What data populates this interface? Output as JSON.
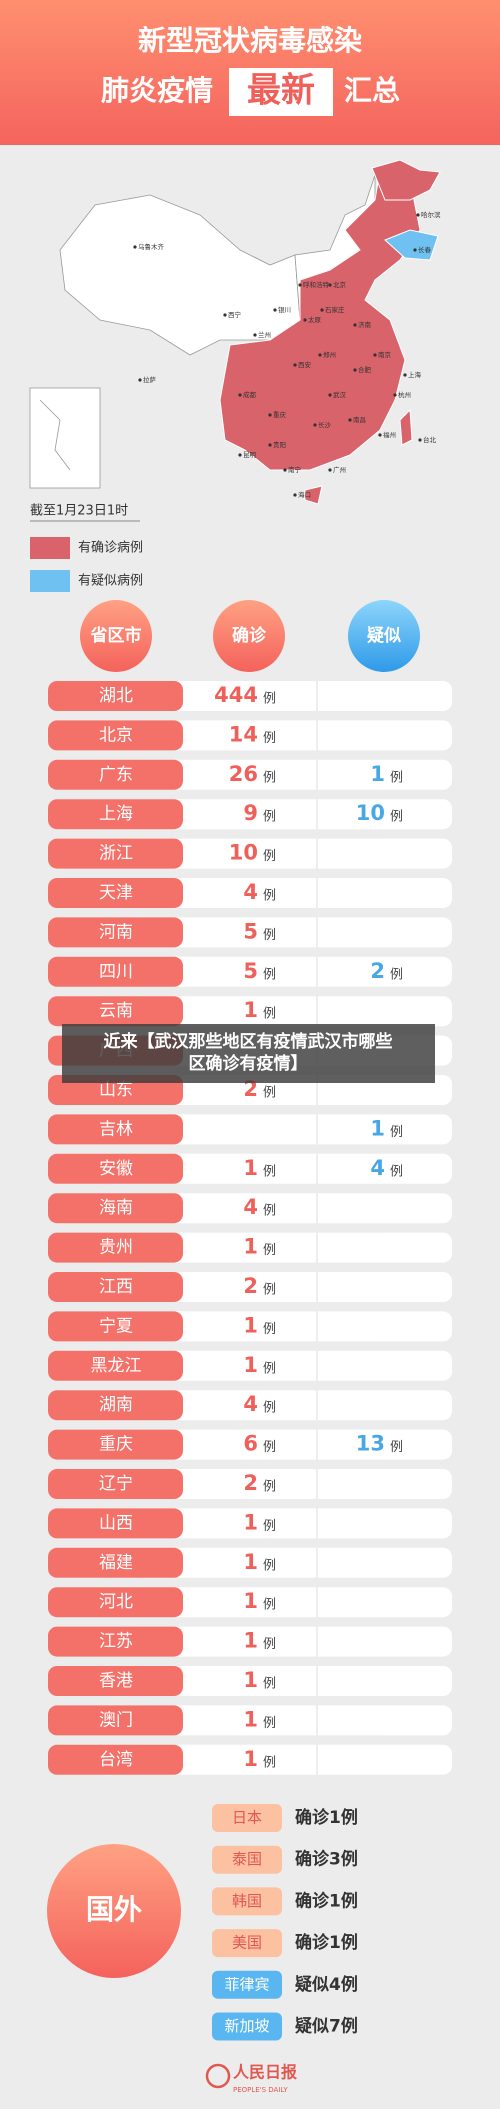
{
  "header": {
    "title_line1": "新型冠状病毒感染",
    "title_line2": [
      "肺炎疫情",
      "最新",
      "汇总"
    ]
  },
  "map": {
    "labels": [
      "乌鲁木齐",
      "拉萨",
      "西宁",
      "兰州",
      "呼和浩特",
      "银川",
      "哈尔滨",
      "长春",
      "北京",
      "石家庄",
      "太原",
      "西安",
      "成都",
      "重庆",
      "贵阳",
      "昆明",
      "南宁",
      "广州",
      "长沙",
      "武汉",
      "郑州",
      "合肥",
      "南京",
      "上海",
      "杭州",
      "南昌",
      "福州",
      "台北",
      "海口",
      "济南"
    ],
    "date": "截至1月23日1时",
    "legend": [
      {
        "label": "有确诊病例",
        "color": "#d8636b"
      },
      {
        "label": "有疑似病例",
        "color": "#6ec1f0"
      }
    ]
  },
  "table": {
    "headers": [
      "省区市",
      "确诊",
      "疑似"
    ],
    "unit": "例",
    "rows": [
      [
        "湖北",
        444,
        null
      ],
      [
        "北京",
        14,
        null
      ],
      [
        "广东",
        26,
        1
      ],
      [
        "上海",
        9,
        10
      ],
      [
        "浙江",
        10,
        null
      ],
      [
        "天津",
        4,
        null
      ],
      [
        "河南",
        5,
        null
      ],
      [
        "四川",
        5,
        2
      ],
      [
        "云南",
        1,
        null
      ],
      [
        "广西",
        null,
        null
      ],
      [
        "山东",
        2,
        null
      ],
      [
        "吉林",
        null,
        1
      ],
      [
        "安徽",
        1,
        4
      ],
      [
        "海南",
        4,
        null
      ],
      [
        "贵州",
        1,
        null
      ],
      [
        "江西",
        2,
        null
      ],
      [
        "宁夏",
        1,
        null
      ],
      [
        "黑龙江",
        1,
        null
      ],
      [
        "湖南",
        4,
        null
      ],
      [
        "重庆",
        6,
        13
      ],
      [
        "辽宁",
        2,
        null
      ],
      [
        "山西",
        1,
        null
      ],
      [
        "福建",
        1,
        null
      ],
      [
        "河北",
        1,
        null
      ],
      [
        "江苏",
        1,
        null
      ],
      [
        "香港",
        1,
        null
      ],
      [
        "澳门",
        1,
        null
      ],
      [
        "台湾",
        1,
        null
      ]
    ]
  },
  "overlay": {
    "text": "近来【武汉那些地区有疫情武汉市哪些区确诊有疫情】"
  },
  "foreign": {
    "title": "国外",
    "rows": [
      [
        "日本",
        "确诊1例"
      ],
      [
        "泰国",
        "确诊3例"
      ],
      [
        "韩国",
        "确诊1例"
      ],
      [
        "美国",
        "确诊1例"
      ],
      [
        "菲律宾",
        "疑似4例"
      ],
      [
        "新加坡",
        "疑似7例"
      ]
    ]
  },
  "footer": {
    "logo": "人民日报",
    "sub": "PEOPLE'S DAILY"
  }
}
